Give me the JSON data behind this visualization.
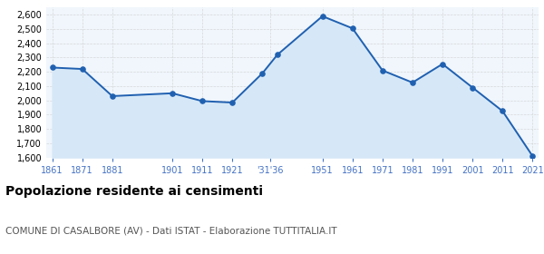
{
  "years": [
    1861,
    1871,
    1881,
    1901,
    1911,
    1921,
    1931,
    1936,
    1951,
    1961,
    1971,
    1981,
    1991,
    2001,
    2011,
    2021
  ],
  "population": [
    2230,
    2220,
    2030,
    2050,
    1995,
    1985,
    2190,
    2320,
    2590,
    2505,
    2210,
    2125,
    2255,
    2090,
    1925,
    1610
  ],
  "line_color": "#2060b0",
  "fill_color": "#d6e8f7",
  "marker_color": "#2060b0",
  "grid_color": "#cccccc",
  "background_color": "#f0f6fc",
  "tick_color": "#4472c4",
  "ylim": [
    1600,
    2650
  ],
  "yticks": [
    1600,
    1700,
    1800,
    1900,
    2000,
    2100,
    2200,
    2300,
    2400,
    2500,
    2600
  ],
  "title": "Popolazione residente ai censimenti",
  "subtitle": "COMUNE DI CASALBORE (AV) - Dati ISTAT - Elaborazione TUTTITALIA.IT",
  "title_fontsize": 10,
  "subtitle_fontsize": 7.5,
  "tick_fontsize": 7,
  "ytick_fontsize": 7
}
